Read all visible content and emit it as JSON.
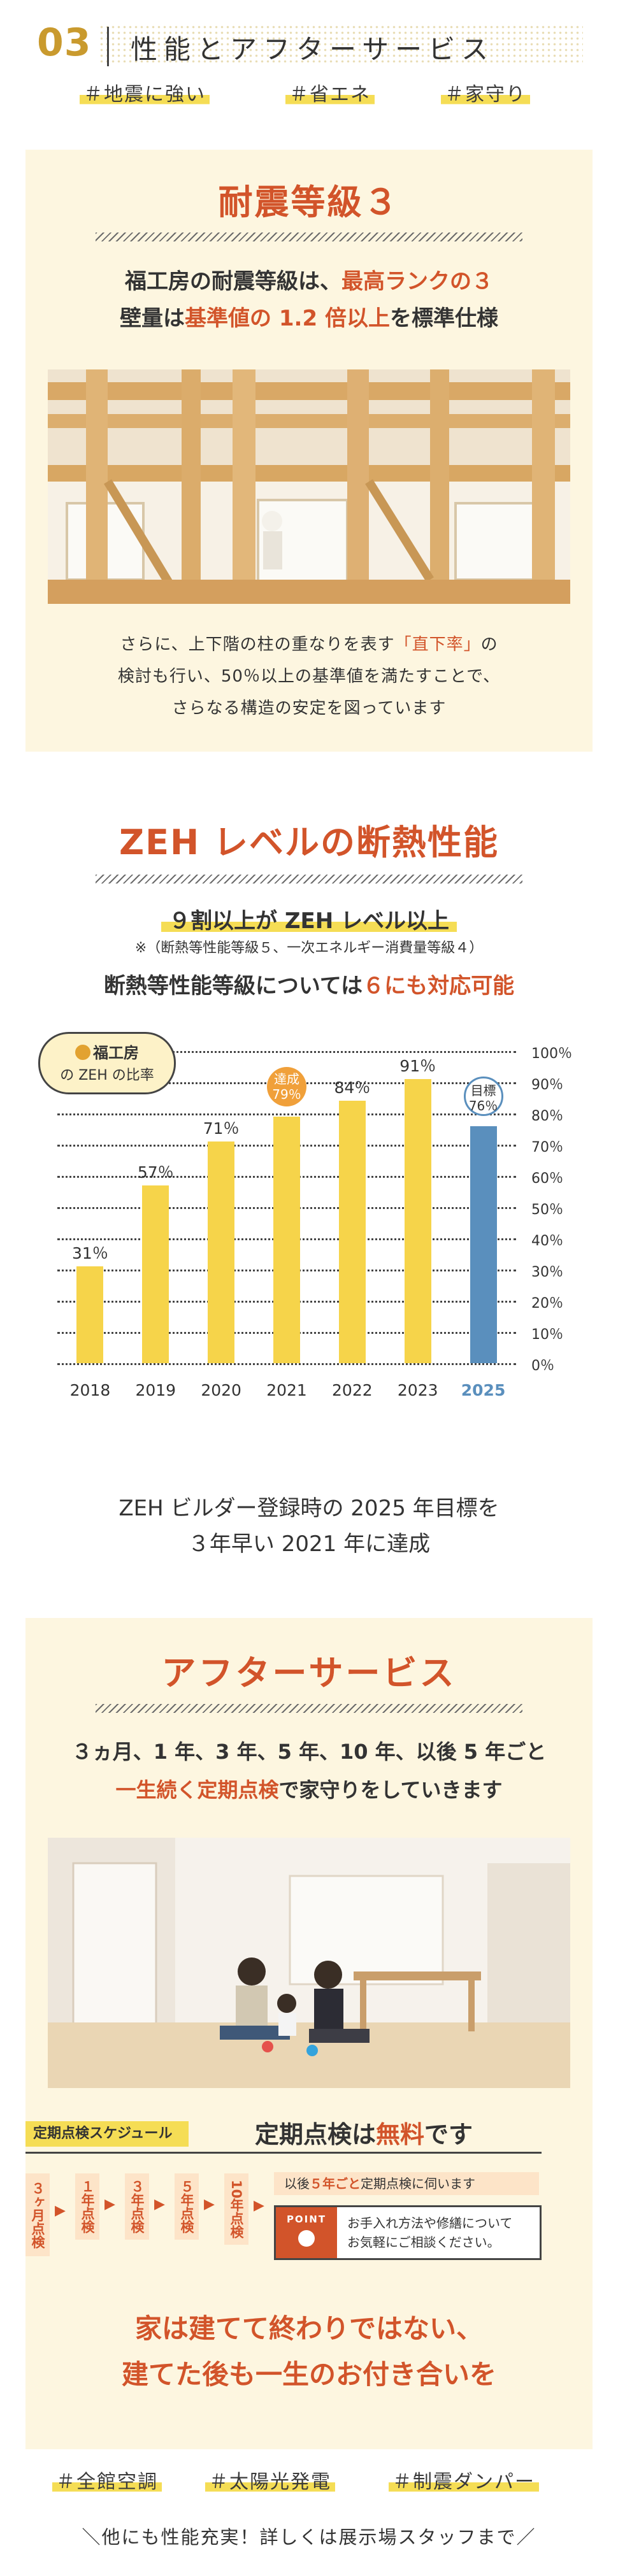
{
  "header": {
    "number": "03",
    "title": "性能とアフターサービス",
    "tags": [
      "＃地震に強い",
      "＃省エネ",
      "＃家守り"
    ]
  },
  "quake": {
    "title": "耐震等級３",
    "lead_line1_a": "福工房の耐震等級は、",
    "lead_line1_b": "最高ランクの３",
    "lead_line2_a": "壁量は",
    "lead_line2_b": "基準値の 1.2 倍以上",
    "lead_line2_c": "を標準仕様",
    "body_line1_a": "さらに、上下階の柱の重なりを表す",
    "body_line1_b": "「直下率」",
    "body_line1_c": "の",
    "body_line2": "検討も行い、50％以上の基準値を満たすことで、",
    "body_line3": "さらなる構造の安定を図っています"
  },
  "zeh": {
    "title": "ZEH レベルの断熱性能",
    "headline": "９割以上が ZEH レベル以上",
    "note": "※（断熱等性能等級５、一次エネルギー消費量等級４）",
    "support_a": "断熱等性能等級については",
    "support_b": "６にも対応可能",
    "badge_brand": "福工房",
    "badge_sub": "の ZEH の比率",
    "achieved_label": "達成",
    "target_label": "目標",
    "footer_line1": "ZEH ビルダー登録時の 2025 年目標を",
    "footer_line2": "３年早い 2021 年に達成"
  },
  "chart_data": {
    "type": "bar",
    "categories": [
      "2018",
      "2019",
      "2020",
      "2021",
      "2022",
      "2023",
      "2025"
    ],
    "values": [
      31,
      57,
      71,
      79,
      84,
      91,
      76
    ],
    "labels": [
      "31％",
      "57％",
      "71％",
      "79％",
      "84％",
      "91％",
      "76％"
    ],
    "ylim": [
      0,
      100
    ],
    "yticks": [
      "0％",
      "10％",
      "20％",
      "30％",
      "40％",
      "50％",
      "60％",
      "70％",
      "80％",
      "90％",
      "100％"
    ],
    "colors": {
      "actual": "#f6d44a",
      "target": "#5a8fbd"
    },
    "title": "福工房の ZEH の比率"
  },
  "after": {
    "title": "アフターサービス",
    "lead_line1": "３ヵ月、1 年、3 年、5 年、10 年、以後 5 年ごと",
    "lead_line2_a": "一生続く定期点検",
    "lead_line2_b": "で家守りをしていきます",
    "schedule_label": "定期点検スケジュール",
    "schedule_title_a": "定期点検は",
    "schedule_title_b": "無料",
    "schedule_title_c": "です",
    "steps": [
      "３ヶ月点検",
      "１年点検",
      "３年点検",
      "５年点検",
      "10年点検"
    ],
    "after_note_a": "以後",
    "after_note_b": "５年ごと",
    "after_note_c": "定期点検に伺います",
    "point_label": "POINT",
    "point_text_line1": "お手入れ方法や修繕について",
    "point_text_line2": "お気軽にご相談ください。",
    "closing_line1": "家は建てて終わりではない、",
    "closing_line2": "建てた後も一生のお付き合いを"
  },
  "footer": {
    "tags": [
      "＃全館空調",
      "＃太陽光発電",
      "＃制震ダンパー"
    ],
    "note": "＼他にも性能充実！詳しくは展示場スタッフまで／"
  },
  "colors": {
    "accent": "#d2542a",
    "highlight": "#f5dd55",
    "card": "#fdf6e0",
    "bar": "#f6d44a",
    "target": "#5a8fbd"
  }
}
